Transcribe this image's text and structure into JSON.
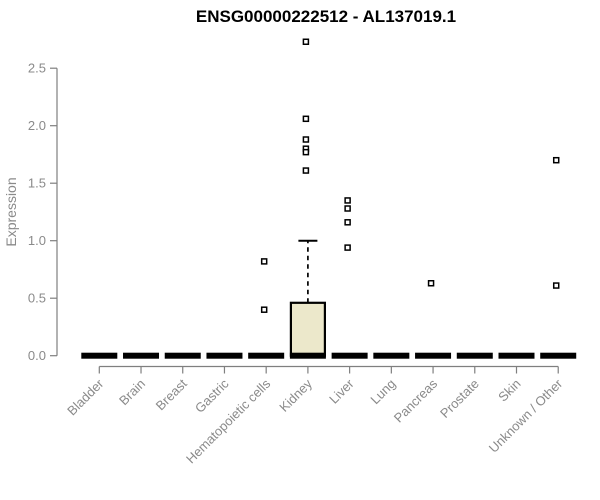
{
  "chart_data": {
    "type": "boxplot",
    "title": "ENSG00000222512 - AL137019.1",
    "ylabel": "Expression",
    "xlabel": "",
    "yticks": [
      0.0,
      0.5,
      1.0,
      1.5,
      2.0,
      2.5
    ],
    "ytick_labels": [
      "0.0",
      "0.5",
      "1.0",
      "1.5",
      "2.0",
      "2.5"
    ],
    "ylim": [
      0,
      2.75
    ],
    "grid": false,
    "legend": "none",
    "categories": [
      "Bladder",
      "Brain",
      "Breast",
      "Gastric",
      "Hematopoietic cells",
      "Kidney",
      "Liver",
      "Lung",
      "Pancreas",
      "Prostate",
      "Skin",
      "Unknown / Other"
    ],
    "boxes": [
      {
        "category": "Bladder",
        "median": 0,
        "q1": 0,
        "q3": 0,
        "whisker_low": 0,
        "whisker_high": 0,
        "outliers": []
      },
      {
        "category": "Brain",
        "median": 0,
        "q1": 0,
        "q3": 0,
        "whisker_low": 0,
        "whisker_high": 0,
        "outliers": []
      },
      {
        "category": "Breast",
        "median": 0,
        "q1": 0,
        "q3": 0,
        "whisker_low": 0,
        "whisker_high": 0,
        "outliers": []
      },
      {
        "category": "Gastric",
        "median": 0,
        "q1": 0,
        "q3": 0,
        "whisker_low": 0,
        "whisker_high": 0,
        "outliers": []
      },
      {
        "category": "Hematopoietic cells",
        "median": 0,
        "q1": 0,
        "q3": 0,
        "whisker_low": 0,
        "whisker_high": 0,
        "outliers": [
          0.82,
          0.4
        ]
      },
      {
        "category": "Kidney",
        "median": 0,
        "q1": 0,
        "q3": 0.46,
        "whisker_low": 0,
        "whisker_high": 1.0,
        "outliers": [
          2.73,
          2.06,
          1.88,
          1.8,
          1.77,
          1.61
        ]
      },
      {
        "category": "Liver",
        "median": 0,
        "q1": 0,
        "q3": 0,
        "whisker_low": 0,
        "whisker_high": 0,
        "outliers": [
          1.35,
          1.28,
          1.16,
          0.94
        ]
      },
      {
        "category": "Lung",
        "median": 0,
        "q1": 0,
        "q3": 0,
        "whisker_low": 0,
        "whisker_high": 0,
        "outliers": []
      },
      {
        "category": "Pancreas",
        "median": 0,
        "q1": 0,
        "q3": 0,
        "whisker_low": 0,
        "whisker_high": 0,
        "outliers": [
          0.63
        ]
      },
      {
        "category": "Prostate",
        "median": 0,
        "q1": 0,
        "q3": 0,
        "whisker_low": 0,
        "whisker_high": 0,
        "outliers": []
      },
      {
        "category": "Skin",
        "median": 0,
        "q1": 0,
        "q3": 0,
        "whisker_low": 0,
        "whisker_high": 0,
        "outliers": []
      },
      {
        "category": "Unknown / Other",
        "median": 0,
        "q1": 0,
        "q3": 0,
        "whisker_low": 0,
        "whisker_high": 0,
        "outliers": [
          1.7,
          0.61
        ]
      }
    ],
    "colors": {
      "box_fill": "#ece8cb",
      "box_stroke": "#000000",
      "median": "#000000",
      "outlier_fill": "#ffffff",
      "outlier_stroke": "#000000",
      "axis": "#7f7f7f",
      "tick_label": "#8a8a8a",
      "title": "#000000",
      "background": "#ffffff"
    }
  }
}
